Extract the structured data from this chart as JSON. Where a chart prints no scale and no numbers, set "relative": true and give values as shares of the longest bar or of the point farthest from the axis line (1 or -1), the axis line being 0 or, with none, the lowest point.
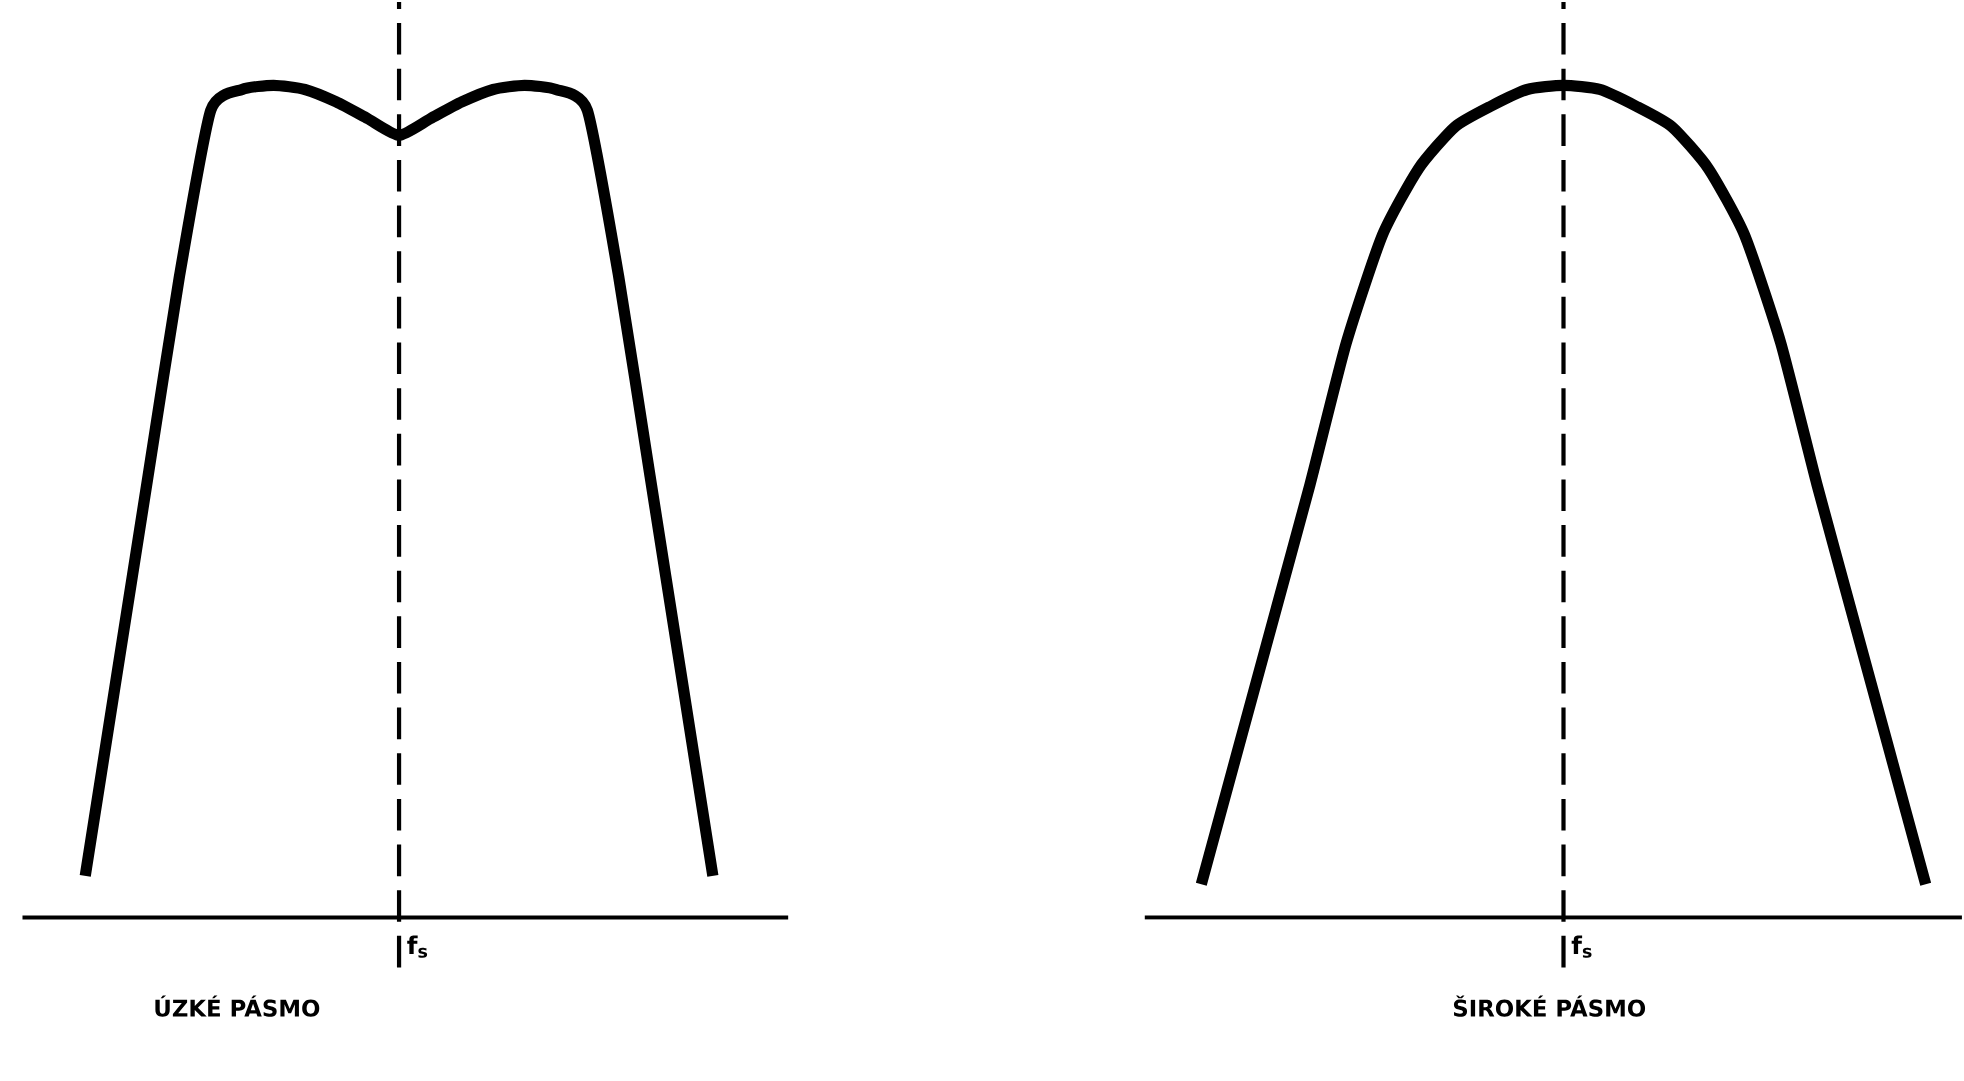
{
  "chart_data": [
    {
      "type": "line",
      "relative": true,
      "title": "ÚZKÉ PÁSMO",
      "categories": [
        null,
        null,
        null,
        null,
        null,
        null,
        null,
        null,
        null,
        null,
        null,
        null,
        null,
        null,
        null,
        null,
        null,
        null,
        null,
        null,
        null
      ],
      "series": [
        {
          "color": "#000000",
          "values": [
            0.05,
            0.29,
            0.53,
            0.77,
            0.97,
            0.995,
            1.0,
            0.995,
            0.98,
            0.96,
            0.94,
            0.96,
            0.98,
            0.995,
            1.0,
            0.995,
            0.97,
            0.77,
            0.53,
            0.29,
            0.05
          ]
        }
      ],
      "annotations": [
        "f$_{s}$"
      ],
      "marker": "none",
      "line_style": "solid"
    },
    {
      "type": "line",
      "relative": true,
      "title": "ŠIROKÉ PÁSMO",
      "categories": [
        null,
        null,
        null,
        null,
        null,
        null,
        null,
        null,
        null,
        null,
        null,
        null,
        null,
        null,
        null,
        null,
        null,
        null,
        null,
        null,
        null
      ],
      "series": [
        {
          "color": "#000000",
          "values": [
            0.04,
            0.2,
            0.36,
            0.52,
            0.69,
            0.82,
            0.9,
            0.95,
            0.975,
            0.995,
            1.0,
            0.995,
            0.975,
            0.95,
            0.9,
            0.82,
            0.69,
            0.52,
            0.36,
            0.2,
            0.04
          ]
        }
      ],
      "annotations": [
        "f$_{s}$"
      ],
      "marker": "none",
      "line_style": "solid"
    }
  ]
}
